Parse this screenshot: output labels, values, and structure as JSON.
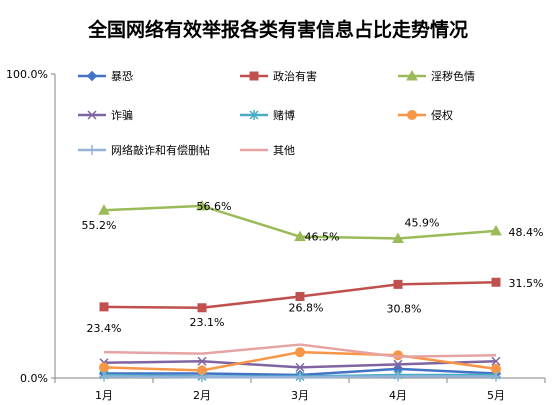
{
  "chart_data": {
    "type": "line",
    "title": "全国网络有效举报各类有害信息占比走势情况",
    "categories": [
      "1月",
      "2月",
      "3月",
      "4月",
      "5月"
    ],
    "ylim": [
      0,
      100
    ],
    "ytick_labels": [
      "100.0%",
      "0.0%"
    ],
    "legend_position": "top",
    "grid": false,
    "series": [
      {
        "name": "暴恐",
        "values": [
          1.5,
          1.5,
          1.0,
          3.0,
          1.5
        ],
        "color": "#4472C4",
        "marker": "diamond"
      },
      {
        "name": "政治有害",
        "values": [
          23.4,
          23.1,
          26.8,
          30.8,
          31.5
        ],
        "color": "#C0504D",
        "marker": "square",
        "labels": [
          "23.4%",
          "23.1%",
          "26.8%",
          "30.8%",
          "31.5%"
        ]
      },
      {
        "name": "淫秽色情",
        "values": [
          55.2,
          56.6,
          46.5,
          45.9,
          48.4
        ],
        "color": "#9BBB59",
        "marker": "triangle",
        "labels": [
          "55.2%",
          "56.6%",
          "46.5%",
          "45.9%",
          "48.4%"
        ]
      },
      {
        "name": "诈骗",
        "values": [
          5.0,
          5.5,
          3.5,
          4.5,
          5.5
        ],
        "color": "#8064A2",
        "marker": "x"
      },
      {
        "name": "赌博",
        "values": [
          1.0,
          0.5,
          0.5,
          1.0,
          1.0
        ],
        "color": "#4BACC6",
        "marker": "star"
      },
      {
        "name": "侵权",
        "values": [
          3.5,
          2.5,
          8.5,
          7.5,
          3.0
        ],
        "color": "#F79646",
        "marker": "circle"
      },
      {
        "name": "网络敲诈和有偿删帖",
        "values": [
          0.5,
          0.3,
          0.3,
          0.5,
          0.5
        ],
        "color": "#95B3D7",
        "marker": "plus"
      },
      {
        "name": "其他",
        "values": [
          8.5,
          8.0,
          11.0,
          7.0,
          7.5
        ],
        "color": "#E6A3A3",
        "marker": "none"
      }
    ]
  }
}
